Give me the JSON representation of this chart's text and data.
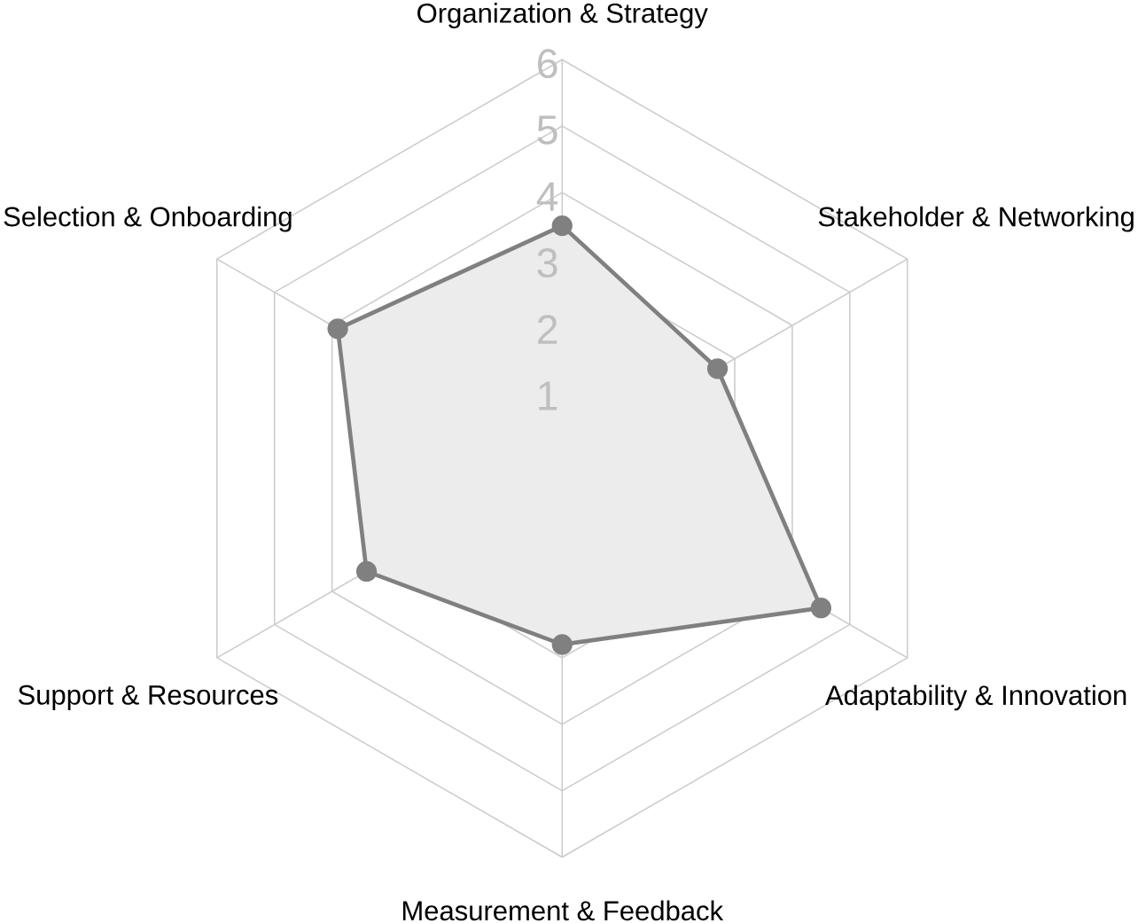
{
  "chart_data": {
    "type": "radar",
    "categories": [
      "Organization & Strategy",
      "Stakeholder & Networking",
      "Adaptability & Innovation",
      "Measurement & Feedback",
      "Support & Resources",
      "Selection & Onboarding"
    ],
    "series": [
      {
        "color": "#808080",
        "values": [
          3.5,
          2.7,
          4.5,
          2.8,
          3.4,
          3.9
        ]
      }
    ],
    "ylim": [
      0,
      6
    ],
    "yticks": [
      1,
      2,
      3,
      4,
      5,
      6
    ],
    "grid": true,
    "marker": "circle"
  }
}
